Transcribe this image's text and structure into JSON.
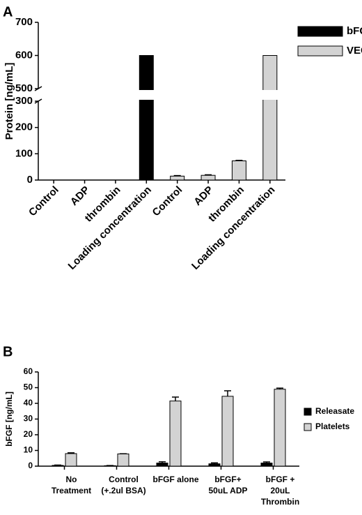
{
  "chart_data": [
    {
      "type": "bar",
      "label": "A",
      "ylabel": "Protein [ng/mL]",
      "categories": [
        "Control",
        "ADP",
        "thrombin",
        "Loading concentration",
        "Control",
        "ADP",
        "thrombin",
        "Loading concentration"
      ],
      "series": [
        {
          "name": "bFGF",
          "color": "#000000",
          "values": [
            0,
            0,
            0,
            600,
            null,
            null,
            null,
            null
          ]
        },
        {
          "name": "VEGF",
          "color": "#d3d3d3",
          "values": [
            null,
            null,
            null,
            null,
            15,
            18,
            73,
            600
          ],
          "errors": [
            null,
            null,
            null,
            null,
            2,
            2,
            2,
            null
          ]
        }
      ],
      "ylim": [
        0,
        700
      ],
      "ybreak": [
        300,
        500
      ],
      "yticks": [
        0,
        100,
        200,
        300,
        500,
        600,
        700
      ],
      "legend": "right"
    },
    {
      "type": "bar",
      "label": "B",
      "ylabel": "bFGF [ng/mL]",
      "categories": [
        [
          "No",
          "Treatment"
        ],
        [
          "Control",
          "(+.2ul BSA)"
        ],
        [
          "bFGF alone"
        ],
        [
          "bFGF+",
          "50uL ADP"
        ],
        [
          "bFGF +",
          "20uL",
          "Thrombin"
        ]
      ],
      "series": [
        {
          "name": "Releasate",
          "color": "#000000",
          "values": [
            0.5,
            0.3,
            2,
            1.5,
            2
          ],
          "errors": [
            0.2,
            0.1,
            0.8,
            0.6,
            0.7
          ]
        },
        {
          "name": "Platelets",
          "color": "#d3d3d3",
          "values": [
            8,
            7.8,
            41.5,
            44.5,
            49
          ],
          "errors": [
            0.5,
            0.1,
            2.5,
            3.5,
            0.7
          ]
        }
      ],
      "ylim": [
        0,
        60
      ],
      "yticks": [
        0,
        10,
        20,
        30,
        40,
        50,
        60
      ],
      "legend": "right"
    }
  ]
}
